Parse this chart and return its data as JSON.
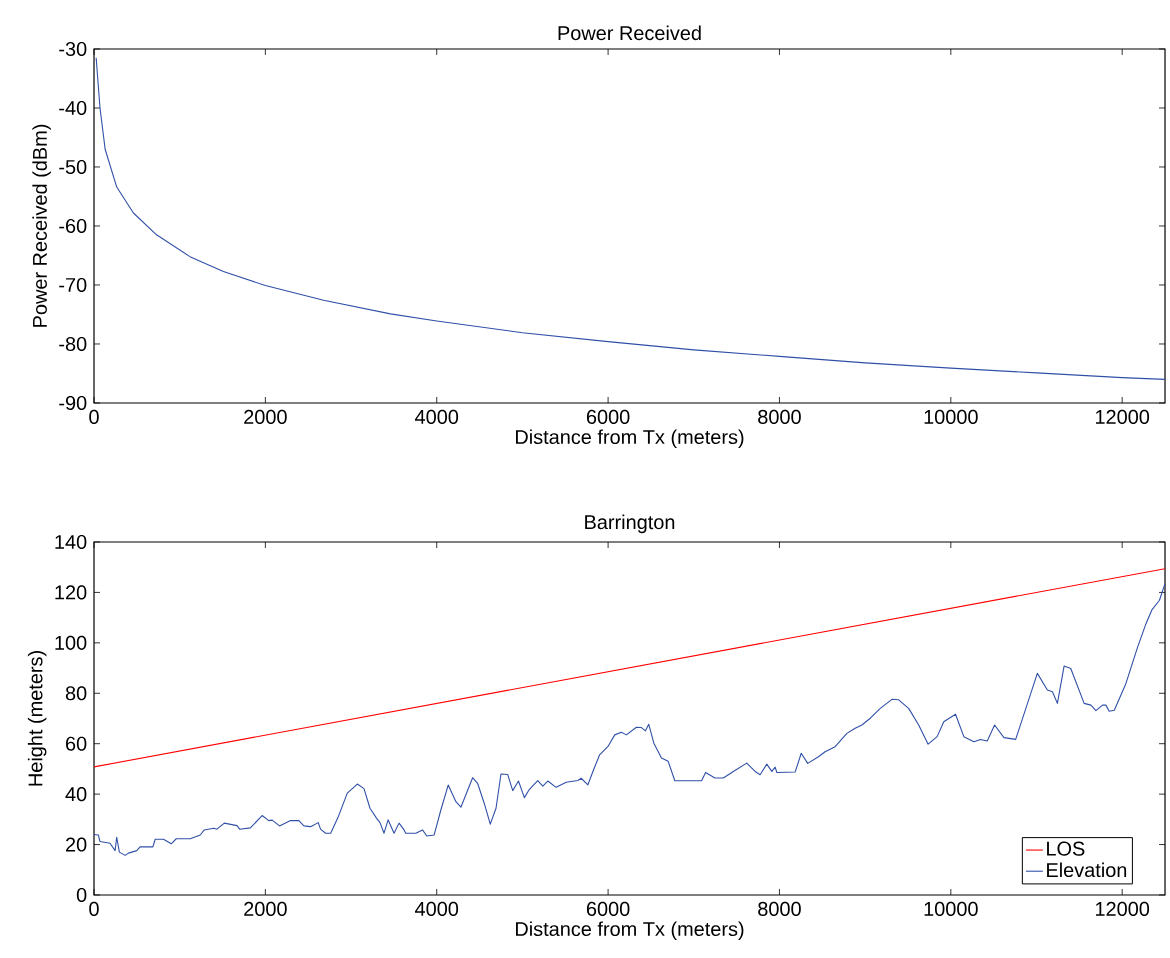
{
  "chart_data": [
    {
      "type": "line",
      "title": "Power Received",
      "xlabel": "Distance from Tx (meters)",
      "ylabel": "Power Received (dBm)",
      "xlim": [
        0,
        12500
      ],
      "xticks": [
        0,
        2000,
        4000,
        6000,
        8000,
        10000,
        12000
      ],
      "ylim": [
        -90,
        -30
      ],
      "yticks": [
        -90,
        -80,
        -70,
        -60,
        -50,
        -40,
        -30
      ],
      "grid": false,
      "legend": false,
      "series": [
        {
          "color": "#3050a8",
          "x": [
            25,
            70,
            130,
            265,
            460,
            730,
            1120,
            1510,
            2000,
            2680,
            3460,
            4000,
            5000,
            6000,
            7000,
            8000,
            9000,
            10000,
            11000,
            12000,
            12500
          ],
          "values": [
            -31.5,
            -40,
            -47,
            -53.4,
            -57.8,
            -61.5,
            -65.2,
            -67.7,
            -70.1,
            -72.6,
            -74.9,
            -76.1,
            -78.1,
            -79.6,
            -81,
            -82.1,
            -83.2,
            -84.1,
            -84.9,
            -85.7,
            -86
          ]
        }
      ]
    },
    {
      "type": "line",
      "title": "Barrington",
      "xlabel": "Distance from Tx (meters)",
      "ylabel": "Height (meters)",
      "xlim": [
        0,
        12500
      ],
      "xticks": [
        0,
        2000,
        4000,
        6000,
        8000,
        10000,
        12000
      ],
      "ylim": [
        0,
        140
      ],
      "yticks": [
        0,
        20,
        40,
        60,
        80,
        100,
        120,
        140
      ],
      "grid": false,
      "legend": "bottom right",
      "series": [
        {
          "name": "LOS",
          "color": "#ff0000",
          "x": [
            0,
            12500
          ],
          "values": [
            50.8,
            129.4
          ]
        },
        {
          "name": "Elevation",
          "color": "#3050a8",
          "x": [
            0,
            51,
            70,
            187,
            246,
            265,
            296,
            363,
            402,
            499,
            538,
            687,
            714,
            811,
            901,
            960,
            1123,
            1240,
            1287,
            1396,
            1435,
            1521,
            1669,
            1700,
            1825,
            1962,
            2040,
            2079,
            2165,
            2294,
            2391,
            2450,
            2528,
            2617,
            2644,
            2703,
            2762,
            2847,
            2956,
            3073,
            3151,
            3221,
            3299,
            3338,
            3385,
            3432,
            3502,
            3560,
            3619,
            3638,
            3756,
            3834,
            3884,
            3970,
            4048,
            4134,
            4224,
            4282,
            4419,
            4477,
            4555,
            4625,
            4692,
            4750,
            4828,
            4887,
            4954,
            5023,
            5082,
            5179,
            5238,
            5296,
            5394,
            5511,
            5647,
            5686,
            5764,
            5823,
            5901,
            5999,
            6077,
            6155,
            6213,
            6330,
            6389,
            6436,
            6475,
            6534,
            6623,
            6701,
            6779,
            7091,
            7138,
            7247,
            7345,
            7462,
            7618,
            7716,
            7774,
            7852,
            7911,
            7950,
            7969,
            8184,
            8254,
            8330,
            8455,
            8533,
            8650,
            8787,
            8884,
            8962,
            9060,
            9177,
            9313,
            9391,
            9508,
            9625,
            9735,
            9840,
            9918,
            10055,
            10152,
            10269,
            10347,
            10425,
            10511,
            10620,
            10757,
            11010,
            11127,
            11186,
            11244,
            11322,
            11400,
            11556,
            11635,
            11693,
            11771,
            11810,
            11849,
            11908,
            12044,
            12181,
            12278,
            12349,
            12435,
            12500
          ],
          "values": [
            24,
            23.8,
            21.2,
            20.5,
            17.6,
            22.9,
            17,
            15.7,
            16.6,
            17.6,
            19.1,
            19.1,
            22.1,
            22.1,
            20.3,
            22.3,
            22.3,
            23.8,
            25.8,
            26.5,
            26.1,
            28.5,
            27.5,
            26.1,
            26.6,
            31.5,
            29.5,
            29.7,
            27.4,
            29.5,
            29.5,
            27.4,
            27.1,
            28.7,
            26.1,
            24.5,
            24.5,
            30.7,
            40.4,
            44,
            42.2,
            34.4,
            30.4,
            28.7,
            24.5,
            29.8,
            24.5,
            28.5,
            25.8,
            24.5,
            24.5,
            25.8,
            23.4,
            23.8,
            33.7,
            43.6,
            37,
            34.8,
            46.5,
            44.3,
            36.3,
            28.1,
            34.4,
            48,
            47.8,
            41.4,
            45.2,
            38.6,
            41.9,
            45.4,
            43.2,
            45.2,
            42.7,
            44.7,
            45.4,
            46.3,
            43.7,
            49,
            55.6,
            58.9,
            63.5,
            64.5,
            63.5,
            66.5,
            66.4,
            65.1,
            67.7,
            60.2,
            54.3,
            53,
            45.3,
            45.3,
            48.6,
            46.4,
            46.4,
            49,
            52.3,
            49,
            47.7,
            51.9,
            49,
            50.7,
            48.6,
            48.8,
            56.2,
            52.2,
            54.8,
            56.8,
            58.8,
            64.1,
            66.1,
            67.4,
            70.1,
            74,
            77.6,
            77.4,
            74,
            67.4,
            59.8,
            62.8,
            68.7,
            71.7,
            62.8,
            60.8,
            61.7,
            61.1,
            67.4,
            62.4,
            61.7,
            87.9,
            81.3,
            80.6,
            76,
            90.8,
            89.8,
            76,
            75.3,
            73.1,
            75.3,
            75.3,
            72.9,
            73.3,
            83.9,
            98.4,
            107.6,
            113.2,
            116.9,
            123.5
          ]
        }
      ]
    }
  ]
}
